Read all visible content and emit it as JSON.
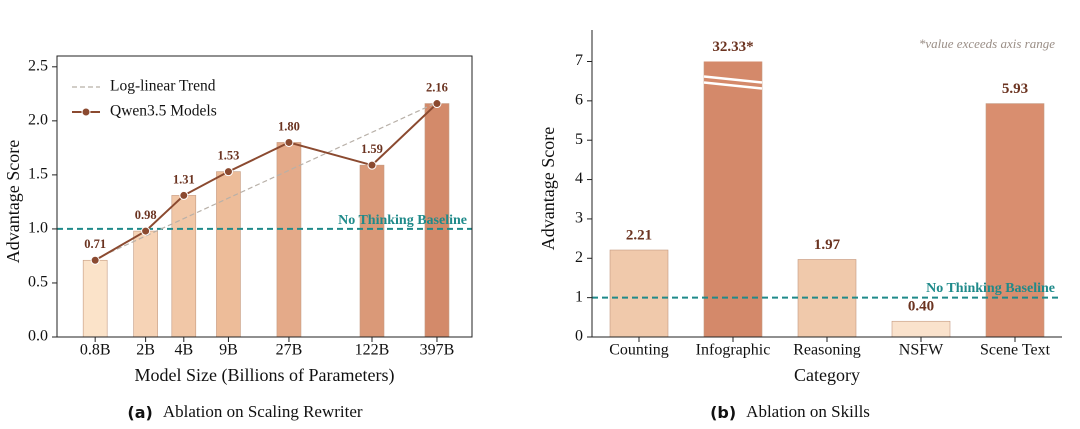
{
  "chart_data": [
    {
      "type": "bar",
      "x": [
        0.8,
        2,
        4,
        9,
        27,
        122,
        397
      ],
      "values": [
        0.71,
        0.98,
        1.31,
        1.53,
        1.8,
        1.59,
        2.16
      ],
      "value_labels": [
        "0.71",
        "0.98",
        "1.31",
        "1.53",
        "1.80",
        "1.59",
        "2.16"
      ],
      "colors": [
        "#fbe3c9",
        "#f6d3b6",
        "#f1c7a7",
        "#edbc99",
        "#e4aa89",
        "#da9978",
        "#d38a6a"
      ],
      "line_name": "Qwen3.5 Models",
      "line_color": "#8b4a30",
      "trend": {
        "name": "Log-linear Trend",
        "x": [
          0.8,
          397
        ],
        "values": [
          0.72,
          2.17
        ],
        "color": "#b8b0a8"
      },
      "baseline": {
        "value": 1,
        "label": "No Thinking Baseline",
        "color": "#1f8a8a"
      },
      "log_x": true,
      "xlim": [
        0.4,
        750
      ],
      "xticks": [
        {
          "value": 0.8,
          "label": "0.8B"
        },
        {
          "value": 2,
          "label": "2B"
        },
        {
          "value": 4,
          "label": "4B"
        },
        {
          "value": 9,
          "label": "9B"
        },
        {
          "value": 27,
          "label": "27B"
        },
        {
          "value": 122,
          "label": "122B"
        },
        {
          "value": 397,
          "label": "397B"
        }
      ],
      "ylim": [
        0,
        2.6
      ],
      "yticks": [
        {
          "value": 0,
          "label": "0.0"
        },
        0.5,
        {
          "value": 1,
          "label": "1.0"
        },
        1.5,
        {
          "value": 2,
          "label": "2.0"
        },
        2.5
      ],
      "xlabel": "Model Size (Billions of Parameters)",
      "ylabel": "Advantage Score",
      "caption_label": "(a)",
      "caption": "Ablation on Scaling Rewriter"
    },
    {
      "type": "bar",
      "categories": [
        "Counting",
        "Infographic",
        "Reasoning",
        "NSFW",
        "Scene Text"
      ],
      "values": [
        2.21,
        32.33,
        1.97,
        0.4,
        5.93
      ],
      "value_labels": [
        "2.21",
        "32.33*",
        "1.97",
        "0.40",
        "5.93"
      ],
      "colors": [
        "#f0c9ab",
        "#d4896a",
        "#f0c9ab",
        "#fae2cc",
        "#d98e6f"
      ],
      "break_at": 7,
      "annotation": "*value exceeds axis range",
      "baseline": {
        "value": 1,
        "label": "No Thinking Baseline",
        "color": "#1f8a8a"
      },
      "ylim": [
        0,
        7.8
      ],
      "yticks": [
        0,
        1,
        2,
        3,
        4,
        5,
        6,
        7
      ],
      "xlabel": "Category",
      "ylabel": "Advantage Score",
      "caption_label": "(b)",
      "caption": "Ablation on Skills"
    }
  ]
}
